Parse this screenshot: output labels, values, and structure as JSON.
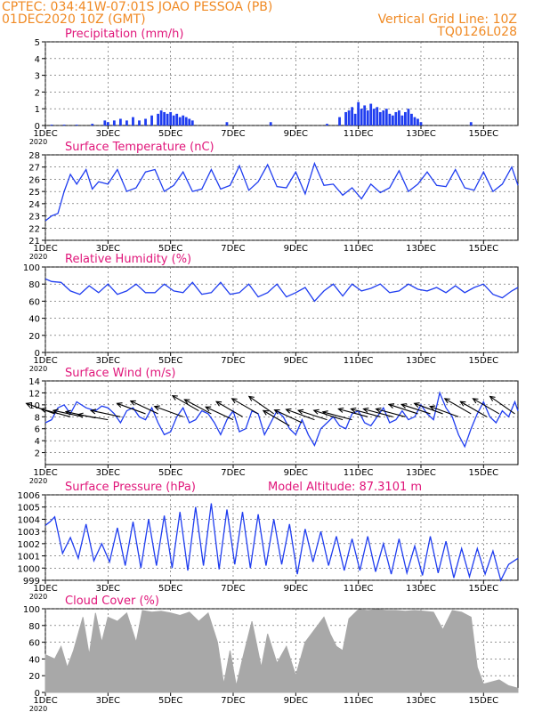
{
  "header": {
    "line1_left": "CPTEC:   034:41W-07:01S  JOAO PESSOA (PB)",
    "line2_left": "01DEC2020 10Z (GMT)",
    "line2_right": "Vertical Grid Line: 10Z",
    "line3_right": "TQ0126L028"
  },
  "colors": {
    "header": "#f08a24",
    "title": "#e0167a",
    "series": "#1f3df0",
    "cloud": "#a8a8a8",
    "wind_arrow": "#000000",
    "grid": "#555555"
  },
  "x_axis": {
    "ticks": [
      {
        "day": 1,
        "label": "1DEC"
      },
      {
        "day": 3,
        "label": "3DEC"
      },
      {
        "day": 5,
        "label": "5DEC"
      },
      {
        "day": 7,
        "label": "7DEC"
      },
      {
        "day": 9,
        "label": "9DEC"
      },
      {
        "day": 11,
        "label": "11DEC"
      },
      {
        "day": 13,
        "label": "13DEC"
      },
      {
        "day": 15,
        "label": "15DEC"
      }
    ],
    "year_label": "2020",
    "range_days": [
      1,
      16.1
    ]
  },
  "chart_data": [
    {
      "type": "bar",
      "title": "Precipitation (mm/h)",
      "ylim": [
        0,
        5
      ],
      "yticks": [
        0,
        1,
        2,
        3,
        4,
        5
      ],
      "ytick_labels": [
        "0",
        "1",
        "2",
        "3",
        "4",
        "5"
      ],
      "x": [
        1.2,
        1.6,
        2.0,
        2.5,
        2.9,
        3.0,
        3.2,
        3.4,
        3.6,
        3.8,
        4.0,
        4.2,
        4.4,
        4.6,
        4.7,
        4.8,
        4.9,
        5.0,
        5.1,
        5.2,
        5.3,
        5.4,
        5.5,
        5.6,
        5.7,
        6.8,
        8.2,
        10.0,
        10.4,
        10.6,
        10.7,
        10.8,
        10.9,
        11.0,
        11.1,
        11.2,
        11.3,
        11.4,
        11.5,
        11.6,
        11.7,
        11.8,
        11.9,
        12.0,
        12.1,
        12.2,
        12.3,
        12.4,
        12.5,
        12.6,
        12.7,
        12.8,
        12.9,
        13.0,
        14.6
      ],
      "values": [
        0.05,
        0.05,
        0.05,
        0.1,
        0.3,
        0.2,
        0.3,
        0.4,
        0.3,
        0.5,
        0.3,
        0.4,
        0.6,
        0.7,
        0.9,
        0.8,
        0.7,
        0.8,
        0.6,
        0.7,
        0.5,
        0.6,
        0.5,
        0.4,
        0.3,
        0.2,
        0.2,
        0.1,
        0.5,
        0.8,
        0.9,
        1.1,
        0.7,
        1.4,
        1.0,
        1.2,
        0.9,
        1.3,
        1.0,
        1.1,
        0.8,
        0.9,
        1.0,
        0.7,
        0.6,
        0.8,
        0.9,
        0.6,
        0.8,
        1.0,
        0.7,
        0.5,
        0.4,
        0.2,
        0.2
      ]
    },
    {
      "type": "line",
      "title": "Surface Temperature (nC)",
      "ylim": [
        21,
        28
      ],
      "yticks": [
        21,
        22,
        23,
        24,
        25,
        26,
        27,
        28
      ],
      "ytick_labels": [
        "21",
        "22",
        "23",
        "24",
        "25",
        "26",
        "27",
        "28"
      ],
      "series": [
        {
          "x": [
            1.0,
            1.2,
            1.4,
            1.6,
            1.8,
            2.0,
            2.3,
            2.5,
            2.7,
            3.0,
            3.3,
            3.6,
            3.9,
            4.2,
            4.5,
            4.8,
            5.1,
            5.4,
            5.7,
            6.0,
            6.3,
            6.6,
            6.9,
            7.2,
            7.5,
            7.8,
            8.1,
            8.4,
            8.7,
            9.0,
            9.3,
            9.6,
            9.9,
            10.2,
            10.5,
            10.8,
            11.1,
            11.4,
            11.7,
            12.0,
            12.3,
            12.6,
            12.9,
            13.2,
            13.5,
            13.8,
            14.1,
            14.4,
            14.7,
            15.0,
            15.3,
            15.6,
            15.9,
            16.1
          ],
          "values": [
            22.6,
            23.0,
            23.2,
            25.0,
            26.4,
            25.6,
            26.8,
            25.2,
            25.8,
            25.6,
            26.8,
            25.0,
            25.3,
            26.6,
            26.8,
            25.0,
            25.5,
            26.6,
            25.0,
            25.2,
            26.8,
            25.2,
            25.5,
            27.1,
            25.1,
            25.8,
            27.2,
            25.4,
            25.3,
            26.6,
            24.8,
            27.3,
            25.5,
            25.6,
            24.7,
            25.3,
            24.4,
            25.6,
            24.9,
            25.3,
            26.7,
            25.0,
            25.6,
            26.6,
            25.5,
            25.4,
            26.8,
            25.3,
            25.1,
            26.6,
            25.0,
            25.6,
            27.0,
            25.5
          ]
        }
      ]
    },
    {
      "type": "line",
      "title": "Relative Humidity (%)",
      "ylim": [
        0,
        100
      ],
      "yticks": [
        0,
        20,
        40,
        60,
        80,
        100
      ],
      "ytick_labels": [
        "0",
        "20",
        "40",
        "60",
        "80",
        "100"
      ],
      "series": [
        {
          "x": [
            1.0,
            1.2,
            1.5,
            1.8,
            2.1,
            2.4,
            2.7,
            3.0,
            3.3,
            3.6,
            3.9,
            4.2,
            4.5,
            4.8,
            5.1,
            5.4,
            5.7,
            6.0,
            6.3,
            6.6,
            6.9,
            7.2,
            7.5,
            7.8,
            8.1,
            8.4,
            8.7,
            9.0,
            9.3,
            9.6,
            9.9,
            10.2,
            10.5,
            10.8,
            11.1,
            11.4,
            11.7,
            12.0,
            12.3,
            12.6,
            12.9,
            13.2,
            13.5,
            13.8,
            14.1,
            14.4,
            14.7,
            15.0,
            15.3,
            15.6,
            15.9,
            16.1
          ],
          "values": [
            86,
            83,
            82,
            72,
            68,
            78,
            70,
            80,
            68,
            72,
            80,
            70,
            70,
            80,
            72,
            70,
            82,
            68,
            70,
            82,
            68,
            70,
            80,
            65,
            70,
            80,
            65,
            70,
            76,
            60,
            72,
            80,
            66,
            80,
            72,
            75,
            80,
            70,
            72,
            80,
            74,
            72,
            76,
            70,
            78,
            70,
            76,
            80,
            68,
            64,
            72,
            76
          ]
        }
      ]
    },
    {
      "type": "line",
      "title": "Surface Wind (m/s)",
      "ylim": [
        0,
        14
      ],
      "yticks": [
        2,
        4,
        6,
        8,
        10,
        12,
        14
      ],
      "ytick_labels": [
        "2",
        "4",
        "6",
        "8",
        "10",
        "12",
        "14"
      ],
      "series": [
        {
          "x": [
            1.0,
            1.2,
            1.4,
            1.6,
            1.8,
            2.0,
            2.3,
            2.6,
            2.8,
            3.0,
            3.2,
            3.4,
            3.6,
            3.8,
            4.0,
            4.2,
            4.4,
            4.6,
            4.8,
            5.0,
            5.2,
            5.4,
            5.6,
            5.8,
            6.0,
            6.2,
            6.4,
            6.6,
            6.8,
            7.0,
            7.2,
            7.4,
            7.6,
            7.8,
            8.0,
            8.2,
            8.4,
            8.6,
            8.8,
            9.0,
            9.2,
            9.4,
            9.6,
            9.8,
            10.0,
            10.2,
            10.4,
            10.6,
            10.8,
            11.0,
            11.2,
            11.4,
            11.6,
            11.8,
            12.0,
            12.2,
            12.4,
            12.6,
            12.8,
            13.0,
            13.2,
            13.4,
            13.6,
            13.8,
            14.0,
            14.2,
            14.4,
            14.6,
            14.8,
            15.0,
            15.2,
            15.4,
            15.6,
            15.8,
            16.0,
            16.1
          ],
          "values": [
            7.0,
            7.5,
            9.5,
            10.0,
            8.5,
            10.5,
            9.5,
            9.0,
            9.8,
            9.5,
            8.5,
            7.0,
            9.0,
            9.5,
            8.0,
            7.5,
            9.5,
            7.0,
            5.0,
            5.5,
            8.0,
            9.5,
            7.0,
            7.5,
            9.0,
            8.5,
            7.0,
            5.0,
            7.5,
            9.0,
            5.5,
            6.0,
            9.0,
            8.5,
            5.0,
            7.0,
            9.0,
            8.0,
            6.0,
            5.0,
            7.5,
            5.0,
            3.2,
            6.0,
            7.0,
            8.0,
            6.5,
            6.0,
            8.5,
            9.0,
            7.0,
            6.5,
            8.0,
            9.5,
            7.0,
            7.5,
            9.0,
            7.5,
            8.0,
            10.0,
            8.5,
            7.5,
            12.0,
            9.5,
            8.0,
            5.0,
            3.0,
            6.0,
            8.5,
            10.5,
            8.0,
            7.0,
            9.0,
            8.0,
            10.5,
            9.0
          ]
        }
      ],
      "wind_arrows": {
        "x": [
          1.3,
          1.8,
          2.2,
          2.6,
          3.0,
          3.4,
          4.2,
          4.6,
          5.4,
          5.9,
          6.3,
          7.0,
          7.3,
          7.8,
          8.3,
          8.8,
          9.2,
          9.6,
          10.0,
          10.5,
          10.8,
          11.3,
          11.7,
          12.1,
          12.5,
          12.9,
          13.3,
          13.7,
          14.2,
          14.6,
          15.1,
          15.5,
          16.0
        ],
        "speed": [
          8.5,
          8.0,
          8.0,
          7.8,
          7.5,
          8.0,
          8.5,
          8.5,
          8.0,
          9.0,
          8.5,
          7.5,
          8.0,
          8.5,
          8.5,
          6.5,
          7.0,
          7.5,
          7.5,
          7.5,
          7.5,
          8.0,
          8.0,
          8.0,
          8.0,
          8.5,
          8.5,
          8.5,
          8.0,
          8.5,
          8.0,
          8.5,
          8.5
        ],
        "direction_to_deg": [
          160,
          165,
          168,
          168,
          170,
          168,
          160,
          155,
          160,
          150,
          152,
          155,
          150,
          150,
          145,
          150,
          155,
          160,
          162,
          162,
          165,
          165,
          165,
          165,
          165,
          162,
          162,
          160,
          160,
          150,
          150,
          150,
          145
        ]
      }
    },
    {
      "type": "line",
      "title": "Surface Pressure (hPa)",
      "annotation": "Model Altitude: 87.3101 m",
      "ylim": [
        999,
        1006
      ],
      "yticks": [
        999,
        1000,
        1001,
        1002,
        1003,
        1004,
        1005,
        1006
      ],
      "ytick_labels": [
        "999",
        "1000",
        "1001",
        "1002",
        "1003",
        "1004",
        "1005",
        "1006"
      ],
      "series": [
        {
          "x": [
            1.0,
            1.15,
            1.3,
            1.55,
            1.8,
            2.05,
            2.3,
            2.55,
            2.8,
            3.05,
            3.3,
            3.55,
            3.8,
            4.05,
            4.3,
            4.55,
            4.8,
            5.05,
            5.3,
            5.55,
            5.8,
            6.05,
            6.3,
            6.55,
            6.8,
            7.05,
            7.3,
            7.55,
            7.8,
            8.05,
            8.3,
            8.55,
            8.8,
            9.05,
            9.3,
            9.55,
            9.8,
            10.05,
            10.3,
            10.55,
            10.8,
            11.05,
            11.3,
            11.55,
            11.8,
            12.05,
            12.3,
            12.55,
            12.8,
            13.05,
            13.3,
            13.55,
            13.8,
            14.05,
            14.3,
            14.55,
            14.8,
            15.05,
            15.3,
            15.55,
            15.8,
            16.1
          ],
          "values": [
            1003.5,
            1003.8,
            1004.2,
            1001.2,
            1002.5,
            1000.8,
            1003.6,
            1000.6,
            1002.0,
            1000.5,
            1003.3,
            1000.2,
            1003.8,
            1000.0,
            1004.0,
            1000.2,
            1004.3,
            1000.0,
            1004.6,
            999.8,
            1005.0,
            1000.2,
            1005.3,
            999.9,
            1004.8,
            1000.3,
            1004.6,
            1000.0,
            1004.4,
            1000.2,
            1004.0,
            1000.3,
            1003.6,
            999.5,
            1003.2,
            1000.5,
            1003.0,
            1000.2,
            1002.6,
            999.8,
            1002.4,
            999.8,
            1002.6,
            999.7,
            1002.0,
            999.5,
            1002.4,
            999.6,
            1001.8,
            999.4,
            1002.6,
            999.6,
            1002.2,
            999.2,
            1001.6,
            999.3,
            1001.6,
            999.5,
            1001.4,
            999.0,
            1000.3,
            1000.8
          ]
        }
      ]
    },
    {
      "type": "area",
      "title": "Cloud Cover (%)",
      "ylim": [
        0,
        100
      ],
      "yticks": [
        0,
        20,
        40,
        60,
        80,
        100
      ],
      "ytick_labels": [
        "0",
        "20",
        "40",
        "60",
        "80",
        "100"
      ],
      "x": [
        1.0,
        1.3,
        1.5,
        1.7,
        1.9,
        2.2,
        2.4,
        2.6,
        2.8,
        3.0,
        3.3,
        3.6,
        3.9,
        4.1,
        4.4,
        4.7,
        5.0,
        5.3,
        5.6,
        5.9,
        6.2,
        6.5,
        6.7,
        6.9,
        7.1,
        7.3,
        7.6,
        7.9,
        8.1,
        8.4,
        8.7,
        9.0,
        9.3,
        9.6,
        9.9,
        10.1,
        10.3,
        10.5,
        10.7,
        11.0,
        11.3,
        11.6,
        11.9,
        12.2,
        12.5,
        12.8,
        13.1,
        13.4,
        13.7,
        14.0,
        14.3,
        14.6,
        14.8,
        15.0,
        15.2,
        15.5,
        15.8,
        16.1
      ],
      "values": [
        45,
        40,
        55,
        30,
        50,
        90,
        45,
        95,
        60,
        90,
        85,
        95,
        60,
        98,
        96,
        97,
        95,
        92,
        96,
        85,
        95,
        60,
        10,
        50,
        8,
        40,
        85,
        30,
        70,
        35,
        55,
        20,
        60,
        75,
        90,
        70,
        55,
        50,
        88,
        99,
        98,
        99,
        98,
        98,
        97,
        98,
        97,
        96,
        75,
        98,
        96,
        90,
        30,
        10,
        12,
        15,
        8,
        5
      ]
    }
  ]
}
